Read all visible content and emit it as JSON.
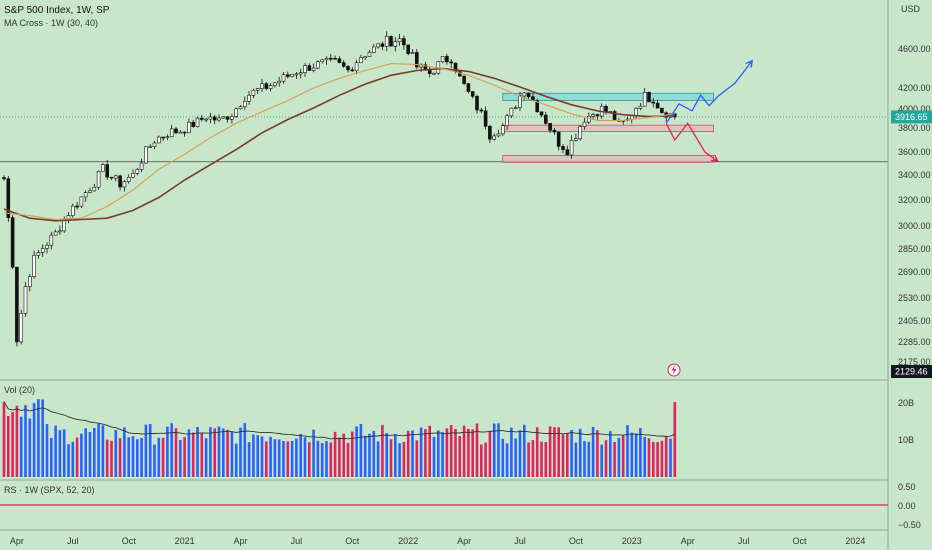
{
  "header": {
    "symbol_title": "S&P 500 Index, 1W, SP",
    "indicator": "MA Cross · 1W (30, 40)",
    "currency": "USD"
  },
  "badges": {
    "last_price": "3916.65",
    "low_marker": "2129.46",
    "last_price_value": 3916.65,
    "low_marker_value": 2129.46
  },
  "volume_pane": {
    "label": "Vol (20)",
    "ticks": [
      "20B",
      "10B"
    ],
    "tick_values": [
      20,
      10
    ]
  },
  "rs_pane": {
    "label": "RS · 1W (SPX, 52, 20)",
    "ticks": [
      "0.50",
      "0.00",
      "−0.50"
    ],
    "tick_values": [
      0.5,
      0.0,
      -0.5
    ]
  },
  "colors": {
    "background": "#c8e6c9",
    "bull": "#ffffff",
    "bear": "#111111",
    "ma_fast": "#d4a050",
    "ma_slow": "#7a3b2e",
    "vol_up": "#2962ff",
    "vol_down": "#e0245e",
    "zone_resistance": "#4dd0e1",
    "zone_support": "#f4a6b0",
    "projection_up": "#2962ff",
    "projection_down": "#e0245e"
  },
  "chart_data": {
    "type": "candlestick",
    "price_axis": {
      "min": 2129.46,
      "max": 4800,
      "ticks": [
        4600,
        4200,
        4000,
        3800,
        3600,
        3400,
        3200,
        3000,
        2850,
        2690,
        2530,
        2405,
        2285,
        2175
      ],
      "tick_labels": [
        "4600.00",
        "4200.00",
        "4000.00",
        "3800.00",
        "3600.00",
        "3400.00",
        "3200.00",
        "3000.00",
        "2850.00",
        "2690.00",
        "2530.00",
        "2405.00",
        "2285.00",
        "2175.00"
      ]
    },
    "time_axis": {
      "labels": [
        "Apr",
        "Jul",
        "Oct",
        "2021",
        "Apr",
        "Jul",
        "Oct",
        "2022",
        "Apr",
        "Jul",
        "Oct",
        "2023",
        "Apr",
        "Jul",
        "Oct",
        "2024"
      ],
      "label_weeks": [
        3,
        16,
        29,
        42,
        55,
        68,
        81,
        94,
        107,
        120,
        133,
        146,
        159,
        172,
        185,
        198
      ]
    },
    "candle_count": 157,
    "anchors": [
      [
        0,
        3370
      ],
      [
        2,
        2750
      ],
      [
        3,
        2300
      ],
      [
        4,
        2450
      ],
      [
        5,
        2600
      ],
      [
        7,
        2780
      ],
      [
        9,
        2860
      ],
      [
        12,
        2950
      ],
      [
        15,
        3100
      ],
      [
        18,
        3220
      ],
      [
        21,
        3340
      ],
      [
        23,
        3450
      ],
      [
        25,
        3380
      ],
      [
        27,
        3330
      ],
      [
        30,
        3400
      ],
      [
        33,
        3600
      ],
      [
        35,
        3700
      ],
      [
        38,
        3760
      ],
      [
        41,
        3780
      ],
      [
        44,
        3840
      ],
      [
        47,
        3920
      ],
      [
        50,
        3880
      ],
      [
        53,
        3950
      ],
      [
        56,
        4120
      ],
      [
        59,
        4180
      ],
      [
        62,
        4230
      ],
      [
        65,
        4300
      ],
      [
        68,
        4370
      ],
      [
        71,
        4420
      ],
      [
        74,
        4450
      ],
      [
        77,
        4460
      ],
      [
        80,
        4380
      ],
      [
        83,
        4530
      ],
      [
        86,
        4600
      ],
      [
        89,
        4680
      ],
      [
        92,
        4700
      ],
      [
        94,
        4600
      ],
      [
        96,
        4420
      ],
      [
        99,
        4350
      ],
      [
        102,
        4480
      ],
      [
        104,
        4510
      ],
      [
        106,
        4300
      ],
      [
        108,
        4150
      ],
      [
        111,
        3950
      ],
      [
        113,
        3750
      ],
      [
        116,
        3820
      ],
      [
        119,
        4050
      ],
      [
        121,
        4200
      ],
      [
        123,
        4080
      ],
      [
        125,
        3950
      ],
      [
        127,
        3800
      ],
      [
        129,
        3680
      ],
      [
        131,
        3620
      ],
      [
        133,
        3750
      ],
      [
        135,
        3900
      ],
      [
        137,
        3950
      ],
      [
        139,
        4000
      ],
      [
        141,
        3950
      ],
      [
        143,
        3840
      ],
      [
        145,
        3880
      ],
      [
        147,
        4020
      ],
      [
        149,
        4120
      ],
      [
        151,
        4100
      ],
      [
        153,
        3980
      ],
      [
        155,
        3940
      ],
      [
        156,
        3916.65
      ]
    ],
    "ma_fast": {
      "period": 30,
      "points": [
        [
          0,
          3100
        ],
        [
          6,
          3080
        ],
        [
          12,
          3050
        ],
        [
          18,
          3060
        ],
        [
          24,
          3150
        ],
        [
          30,
          3280
        ],
        [
          36,
          3450
        ],
        [
          42,
          3580
        ],
        [
          48,
          3720
        ],
        [
          54,
          3850
        ],
        [
          60,
          3970
        ],
        [
          66,
          4080
        ],
        [
          72,
          4200
        ],
        [
          78,
          4300
        ],
        [
          84,
          4380
        ],
        [
          90,
          4450
        ],
        [
          96,
          4440
        ],
        [
          102,
          4400
        ],
        [
          108,
          4330
        ],
        [
          114,
          4230
        ],
        [
          120,
          4120
        ],
        [
          126,
          4040
        ],
        [
          132,
          3950
        ],
        [
          138,
          3880
        ],
        [
          144,
          3880
        ],
        [
          150,
          3910
        ],
        [
          156,
          3950
        ]
      ]
    },
    "ma_slow": {
      "period": 40,
      "points": [
        [
          0,
          3130
        ],
        [
          6,
          3060
        ],
        [
          12,
          3040
        ],
        [
          18,
          3050
        ],
        [
          24,
          3060
        ],
        [
          30,
          3120
        ],
        [
          36,
          3220
        ],
        [
          42,
          3360
        ],
        [
          48,
          3490
        ],
        [
          54,
          3620
        ],
        [
          60,
          3760
        ],
        [
          66,
          3890
        ],
        [
          72,
          4010
        ],
        [
          78,
          4130
        ],
        [
          84,
          4240
        ],
        [
          90,
          4330
        ],
        [
          96,
          4380
        ],
        [
          102,
          4400
        ],
        [
          108,
          4370
        ],
        [
          114,
          4300
        ],
        [
          120,
          4210
        ],
        [
          126,
          4120
        ],
        [
          132,
          4040
        ],
        [
          138,
          3980
        ],
        [
          144,
          3940
        ],
        [
          150,
          3920
        ],
        [
          156,
          3930
        ]
      ]
    },
    "zones": [
      {
        "week_from": 116,
        "week_to": 165,
        "price_low": 4080,
        "price_high": 4150
      },
      {
        "week_from": 116,
        "week_to": 165,
        "price_low": 3770,
        "price_high": 3830
      },
      {
        "week_from": 116,
        "week_to": 165,
        "price_low": 3510,
        "price_high": 3570
      }
    ],
    "horizontal_line": 3515,
    "projection_up": [
      [
        154,
        3850
      ],
      [
        157,
        4050
      ],
      [
        160,
        3980
      ],
      [
        162,
        4130
      ],
      [
        164,
        4030
      ],
      [
        166,
        4120
      ],
      [
        170,
        4250
      ],
      [
        174,
        4480
      ]
    ],
    "projection_down": [
      [
        154,
        3850
      ],
      [
        156,
        3700
      ],
      [
        159,
        3850
      ],
      [
        163,
        3600
      ],
      [
        166,
        3520
      ]
    ]
  }
}
